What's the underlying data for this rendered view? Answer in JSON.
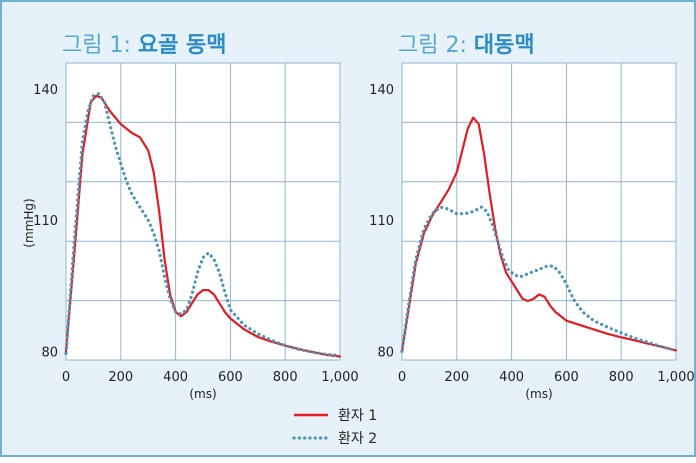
{
  "colors": {
    "background": "#e6f2f8",
    "border": "#6fb0d3",
    "grid": "#8fb7d0",
    "title_light": "#56a8d4",
    "title_bold": "#2b8cc4",
    "series_1": "#e31b23",
    "series_2": "#4b95b7"
  },
  "legend": {
    "entries": [
      {
        "label": "환자 1",
        "style": "solid"
      },
      {
        "label": "환자 2",
        "style": "dotted"
      }
    ]
  },
  "chart_data": [
    {
      "type": "line",
      "title_prefix": "그림 1: ",
      "title_main": "요골 동맥",
      "xlabel": "(ms)",
      "ylabel": "(mmHg)",
      "xlim": [
        0,
        1000
      ],
      "ylim": [
        78,
        146
      ],
      "xticks": [
        0,
        200,
        400,
        600,
        800,
        1000
      ],
      "xtick_labels": [
        "0",
        "200",
        "400",
        "600",
        "800",
        "1,000"
      ],
      "yticks": [
        80,
        110,
        140
      ],
      "ytick_labels": [
        "80",
        "110",
        "140"
      ],
      "grid": true,
      "series": [
        {
          "name": "환자 1",
          "x": [
            0,
            30,
            60,
            90,
            110,
            130,
            160,
            200,
            240,
            270,
            300,
            320,
            340,
            360,
            380,
            400,
            420,
            440,
            460,
            480,
            500,
            520,
            540,
            560,
            580,
            600,
            650,
            700,
            750,
            800,
            850,
            900,
            950,
            1000
          ],
          "y": [
            80,
            102,
            125,
            137,
            138.5,
            138,
            135,
            132,
            130,
            129,
            126,
            121,
            112,
            101,
            93,
            89,
            88,
            89,
            91,
            93,
            94,
            94,
            93,
            91,
            89,
            87.5,
            85,
            83.3,
            82.2,
            81.3,
            80.5,
            79.8,
            79.2,
            78.8
          ]
        },
        {
          "name": "환자 2",
          "x": [
            0,
            30,
            60,
            80,
            100,
            120,
            140,
            160,
            180,
            200,
            220,
            240,
            260,
            280,
            300,
            320,
            340,
            360,
            380,
            400,
            420,
            440,
            460,
            480,
            500,
            520,
            540,
            560,
            580,
            600,
            650,
            700,
            750,
            800,
            850,
            900,
            950,
            1000
          ],
          "y": [
            79.5,
            105,
            128,
            135,
            138.5,
            139,
            137,
            132,
            127,
            123,
            119,
            116,
            114,
            112,
            110,
            107,
            103,
            97,
            92,
            89,
            88.5,
            89.5,
            93,
            98,
            101.5,
            102.5,
            101,
            98,
            93.5,
            89.5,
            86,
            84,
            82.5,
            81.3,
            80.4,
            79.8,
            79.3,
            79
          ]
        }
      ]
    },
    {
      "type": "line",
      "title_prefix": "그림 2: ",
      "title_main": "대동맥",
      "xlabel": "(ms)",
      "ylabel": "",
      "xlim": [
        0,
        1000
      ],
      "ylim": [
        78,
        146
      ],
      "xticks": [
        0,
        200,
        400,
        600,
        800,
        1000
      ],
      "xtick_labels": [
        "0",
        "200",
        "400",
        "600",
        "800",
        "1,000"
      ],
      "yticks": [
        80,
        110,
        140
      ],
      "ytick_labels": [
        "80",
        "110",
        "140"
      ],
      "grid": true,
      "series": [
        {
          "name": "환자 1",
          "x": [
            0,
            20,
            50,
            80,
            110,
            140,
            170,
            200,
            220,
            240,
            260,
            280,
            300,
            320,
            340,
            360,
            380,
            400,
            420,
            440,
            460,
            480,
            500,
            520,
            540,
            560,
            580,
            600,
            650,
            700,
            750,
            800,
            850,
            900,
            950,
            1000
          ],
          "y": [
            80,
            88,
            100,
            107,
            111,
            114,
            117,
            121,
            126,
            131,
            133.5,
            132,
            125,
            116,
            108,
            102,
            98,
            96,
            94,
            92,
            91.5,
            92,
            93,
            92.5,
            90.5,
            89,
            88,
            87,
            86,
            85,
            84,
            83.2,
            82.5,
            81.7,
            81,
            80.2
          ]
        },
        {
          "name": "환자 2",
          "x": [
            0,
            20,
            50,
            80,
            110,
            140,
            170,
            200,
            230,
            260,
            290,
            310,
            330,
            350,
            370,
            390,
            410,
            430,
            450,
            470,
            490,
            510,
            530,
            550,
            570,
            590,
            610,
            630,
            660,
            700,
            750,
            800,
            850,
            900,
            950,
            1000
          ],
          "y": [
            80,
            89,
            101,
            108,
            111.5,
            113,
            112.5,
            111.5,
            111.5,
            112,
            113,
            112,
            109,
            105,
            101,
            98.5,
            97.5,
            97,
            97.5,
            98,
            98.5,
            99,
            99.5,
            99.5,
            98.5,
            96.5,
            94,
            91.5,
            89,
            87,
            85.5,
            84.2,
            83,
            82,
            81,
            80.2
          ]
        }
      ]
    }
  ]
}
